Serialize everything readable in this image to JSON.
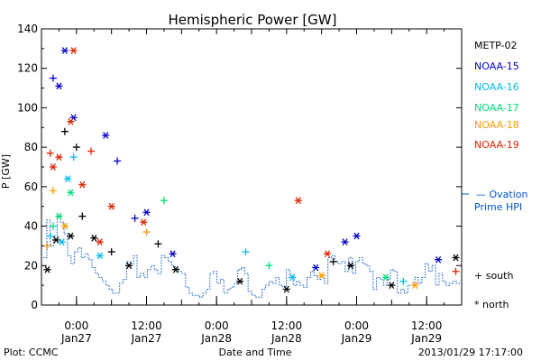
{
  "chart_data": {
    "type": "scatter",
    "title": "Hemispheric Power [GW]",
    "ylabel": "P [GW]",
    "xlabel": "Date and Time",
    "ylim": [
      0,
      140
    ],
    "yticks": [
      0,
      20,
      40,
      60,
      80,
      100,
      120,
      140
    ],
    "xlim": [
      "2013-01-26T18:00",
      "2013-01-29T18:00"
    ],
    "xticks": [
      {
        "x": "2013-01-27T00:00",
        "time": "0:00",
        "date": "Jan27"
      },
      {
        "x": "2013-01-27T12:00",
        "time": "12:00",
        "date": "Jan27"
      },
      {
        "x": "2013-01-28T00:00",
        "time": "0:00",
        "date": "Jan28"
      },
      {
        "x": "2013-01-28T12:00",
        "time": "12:00",
        "date": "Jan28"
      },
      {
        "x": "2013-01-29T00:00",
        "time": "0:00",
        "date": "Jan29"
      },
      {
        "x": "2013-01-29T12:00",
        "time": "12:00",
        "date": "Jan29"
      }
    ],
    "grid": false,
    "legend_position": "right",
    "series": [
      {
        "name": "METP-02",
        "color": "#000000",
        "points": [
          {
            "x": "2013-01-26T19:00",
            "y": 18,
            "m": "north"
          },
          {
            "x": "2013-01-26T20:30",
            "y": 33,
            "m": "north"
          },
          {
            "x": "2013-01-26T22:00",
            "y": 88,
            "m": "south"
          },
          {
            "x": "2013-01-26T23:00",
            "y": 35,
            "m": "north"
          },
          {
            "x": "2013-01-27T00:00",
            "y": 80,
            "m": "south"
          },
          {
            "x": "2013-01-27T01:00",
            "y": 45,
            "m": "south"
          },
          {
            "x": "2013-01-27T03:00",
            "y": 34,
            "m": "north"
          },
          {
            "x": "2013-01-27T06:00",
            "y": 27,
            "m": "south"
          },
          {
            "x": "2013-01-27T09:00",
            "y": 20,
            "m": "north"
          },
          {
            "x": "2013-01-27T14:00",
            "y": 31,
            "m": "south"
          },
          {
            "x": "2013-01-27T17:00",
            "y": 18,
            "m": "north"
          },
          {
            "x": "2013-01-28T04:00",
            "y": 12,
            "m": "north"
          },
          {
            "x": "2013-01-28T12:00",
            "y": 8,
            "m": "north"
          },
          {
            "x": "2013-01-28T20:00",
            "y": 22,
            "m": "south"
          },
          {
            "x": "2013-01-28T23:00",
            "y": 20,
            "m": "north"
          },
          {
            "x": "2013-01-29T06:00",
            "y": 10,
            "m": "north"
          },
          {
            "x": "2013-01-29T17:00",
            "y": 24,
            "m": "north"
          }
        ]
      },
      {
        "name": "NOAA-15",
        "color": "#0000cc",
        "points": [
          {
            "x": "2013-01-26T20:00",
            "y": 115,
            "m": "south"
          },
          {
            "x": "2013-01-26T21:00",
            "y": 111,
            "m": "north"
          },
          {
            "x": "2013-01-26T22:00",
            "y": 129,
            "m": "north"
          },
          {
            "x": "2013-01-26T23:30",
            "y": 95,
            "m": "north"
          },
          {
            "x": "2013-01-27T05:00",
            "y": 86,
            "m": "north"
          },
          {
            "x": "2013-01-27T07:00",
            "y": 73,
            "m": "south"
          },
          {
            "x": "2013-01-27T10:00",
            "y": 44,
            "m": "south"
          },
          {
            "x": "2013-01-27T12:00",
            "y": 47,
            "m": "north"
          },
          {
            "x": "2013-01-27T16:30",
            "y": 26,
            "m": "north"
          },
          {
            "x": "2013-01-28T17:00",
            "y": 19,
            "m": "north"
          },
          {
            "x": "2013-01-28T22:00",
            "y": 32,
            "m": "north"
          },
          {
            "x": "2013-01-29T00:00",
            "y": 35,
            "m": "north"
          },
          {
            "x": "2013-01-29T14:00",
            "y": 23,
            "m": "north"
          }
        ]
      },
      {
        "name": "NOAA-16",
        "color": "#00bbee",
        "points": [
          {
            "x": "2013-01-26T19:30",
            "y": 35,
            "m": "south"
          },
          {
            "x": "2013-01-26T21:30",
            "y": 32,
            "m": "north"
          },
          {
            "x": "2013-01-26T22:30",
            "y": 64,
            "m": "north"
          },
          {
            "x": "2013-01-26T23:30",
            "y": 75,
            "m": "south"
          },
          {
            "x": "2013-01-27T04:00",
            "y": 25,
            "m": "north"
          },
          {
            "x": "2013-01-28T05:00",
            "y": 27,
            "m": "south"
          },
          {
            "x": "2013-01-28T13:00",
            "y": 14,
            "m": "north"
          },
          {
            "x": "2013-01-29T08:00",
            "y": 12,
            "m": "south"
          }
        ]
      },
      {
        "name": "NOAA-17",
        "color": "#00dd77",
        "points": [
          {
            "x": "2013-01-26T20:00",
            "y": 40,
            "m": "south"
          },
          {
            "x": "2013-01-26T21:00",
            "y": 45,
            "m": "north"
          },
          {
            "x": "2013-01-26T23:00",
            "y": 57,
            "m": "north"
          },
          {
            "x": "2013-01-27T15:00",
            "y": 53,
            "m": "south"
          },
          {
            "x": "2013-01-28T09:00",
            "y": 20,
            "m": "south"
          },
          {
            "x": "2013-01-29T05:00",
            "y": 14,
            "m": "north"
          }
        ]
      },
      {
        "name": "NOAA-18",
        "color": "#ff9900",
        "points": [
          {
            "x": "2013-01-26T19:00",
            "y": 30,
            "m": "south"
          },
          {
            "x": "2013-01-26T20:00",
            "y": 58,
            "m": "south"
          },
          {
            "x": "2013-01-26T22:00",
            "y": 40,
            "m": "north"
          },
          {
            "x": "2013-01-27T12:00",
            "y": 37,
            "m": "south"
          },
          {
            "x": "2013-01-28T18:00",
            "y": 15,
            "m": "north"
          },
          {
            "x": "2013-01-29T10:00",
            "y": 10,
            "m": "north"
          }
        ]
      },
      {
        "name": "NOAA-19",
        "color": "#dd2200",
        "points": [
          {
            "x": "2013-01-26T19:30",
            "y": 77,
            "m": "south"
          },
          {
            "x": "2013-01-26T20:00",
            "y": 70,
            "m": "north"
          },
          {
            "x": "2013-01-26T21:00",
            "y": 75,
            "m": "north"
          },
          {
            "x": "2013-01-26T23:00",
            "y": 93,
            "m": "north"
          },
          {
            "x": "2013-01-26T23:30",
            "y": 129,
            "m": "north"
          },
          {
            "x": "2013-01-27T01:00",
            "y": 61,
            "m": "north"
          },
          {
            "x": "2013-01-27T02:30",
            "y": 78,
            "m": "south"
          },
          {
            "x": "2013-01-27T04:00",
            "y": 32,
            "m": "north"
          },
          {
            "x": "2013-01-27T06:00",
            "y": 50,
            "m": "north"
          },
          {
            "x": "2013-01-27T11:30",
            "y": 42,
            "m": "north"
          },
          {
            "x": "2013-01-28T14:00",
            "y": 53,
            "m": "north"
          },
          {
            "x": "2013-01-28T19:00",
            "y": 26,
            "m": "north"
          },
          {
            "x": "2013-01-29T17:00",
            "y": 17,
            "m": "south"
          }
        ]
      }
    ],
    "ovation_hpi": {
      "name": "Ovation Prime HPI",
      "color": "#0055cc",
      "values": [
        24,
        43,
        30,
        35,
        46,
        42,
        36,
        25,
        21,
        27,
        29,
        24,
        26,
        23,
        19,
        16,
        14,
        12,
        10,
        8,
        6,
        6,
        11,
        13,
        22,
        21,
        25,
        14,
        16,
        14,
        18,
        20,
        18,
        16,
        25,
        24,
        22,
        20,
        19,
        17,
        16,
        9,
        6,
        5,
        5,
        4,
        6,
        8,
        16,
        17,
        11,
        13,
        6,
        8,
        9,
        11,
        18,
        19,
        16,
        7,
        5,
        4,
        4,
        8,
        10,
        12,
        11,
        14,
        10,
        9,
        18,
        15,
        10,
        12,
        10,
        9,
        14,
        17,
        15,
        13,
        15,
        11,
        24,
        25,
        22,
        21,
        22,
        17,
        24,
        16,
        22,
        24,
        21,
        20,
        17,
        8,
        14,
        13,
        10,
        13,
        18,
        17,
        6,
        8,
        6,
        10,
        10,
        14,
        11,
        14,
        21,
        17,
        20,
        10,
        16,
        12,
        10,
        11,
        12,
        11
      ]
    }
  },
  "legend": {
    "entries": [
      "METP-02",
      "NOAA-15",
      "NOAA-16",
      "NOAA-17",
      "NOAA-18",
      "NOAA-19"
    ],
    "colors": [
      "#000000",
      "#0000cc",
      "#00bbee",
      "#00dd77",
      "#ff9900",
      "#dd2200"
    ],
    "ovation_line1": "— Ovation",
    "ovation_line2": "Prime HPI",
    "south_label": "+ south",
    "north_label": "* north"
  },
  "footer": {
    "left": "Plot: CCMC",
    "center": "Date and Time",
    "right": "2013/01/29 17:17:00"
  }
}
